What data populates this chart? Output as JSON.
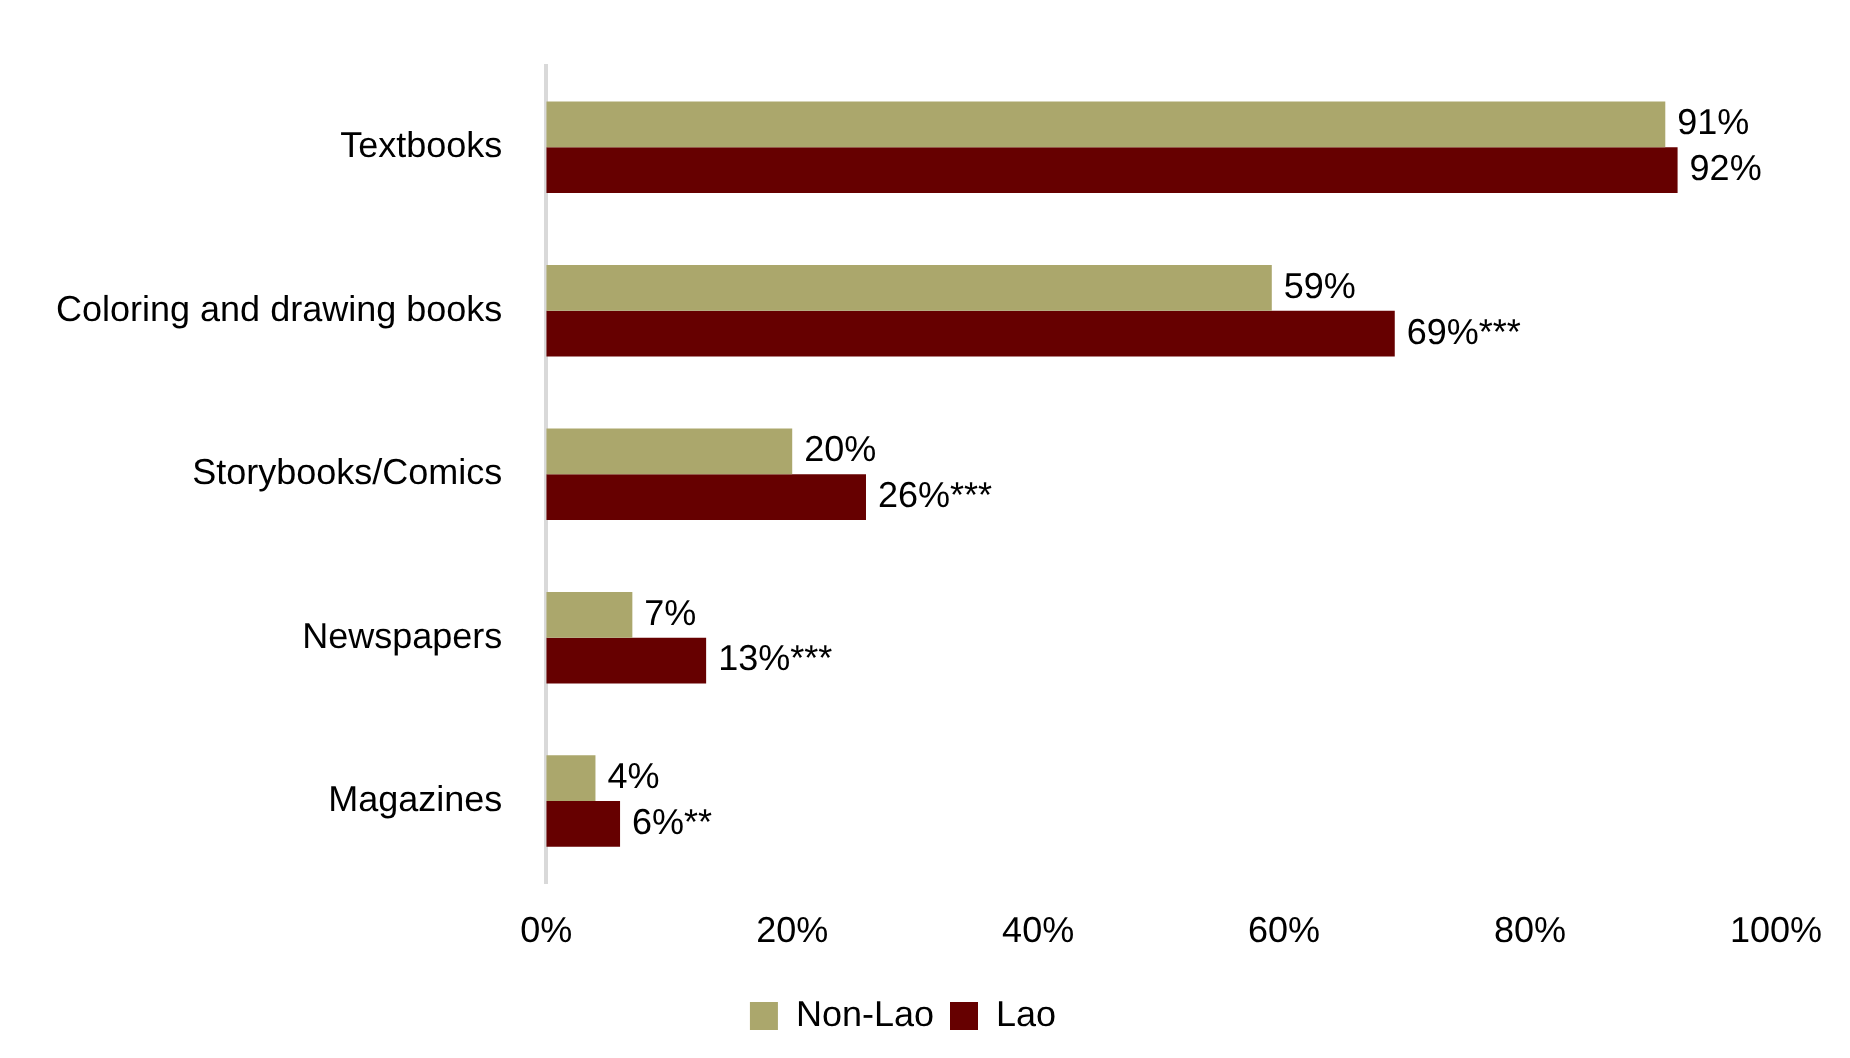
{
  "chart_data": {
    "type": "bar",
    "orientation": "horizontal",
    "categories": [
      "Textbooks",
      "Coloring and drawing books",
      "Storybooks/Comics",
      "Newspapers",
      "Magazines"
    ],
    "series": [
      {
        "name": "Non-Lao",
        "color": "#aba76c",
        "values": [
          91,
          59,
          20,
          7,
          4
        ],
        "value_labels": [
          "91%",
          "59%",
          "20%",
          "7%",
          "4%"
        ]
      },
      {
        "name": "Lao",
        "color": "#660000",
        "values": [
          92,
          69,
          26,
          13,
          6
        ],
        "value_labels": [
          "92%",
          "69%***",
          "26%***",
          "13%***",
          "6%**"
        ]
      }
    ],
    "xlim": [
      0,
      100
    ],
    "xticks": [
      {
        "value": 0,
        "label": "0%"
      },
      {
        "value": 20,
        "label": "20%"
      },
      {
        "value": 40,
        "label": "40%"
      },
      {
        "value": 60,
        "label": "60%"
      },
      {
        "value": 80,
        "label": "80%"
      },
      {
        "value": 100,
        "label": "100%"
      }
    ],
    "grid": false,
    "legend": "bottom"
  }
}
